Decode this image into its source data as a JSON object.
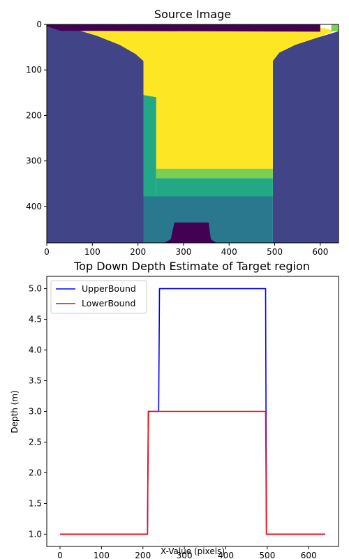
{
  "chart_data": [
    {
      "type": "image",
      "title": "Source Image",
      "xlim": [
        0,
        640
      ],
      "ylim": [
        480,
        0
      ],
      "xticks": [
        0,
        100,
        200,
        300,
        400,
        500,
        600
      ],
      "yticks": [
        0,
        100,
        200,
        300,
        400
      ],
      "colors": {
        "c0": "#440154",
        "c1": "#414487",
        "c2": "#2a788e",
        "c3": "#22a884",
        "c4": "#7ad151",
        "c5": "#fde725"
      },
      "regions": [
        {
          "name": "left-wall",
          "color": "c1",
          "points": [
            [
              0,
              0
            ],
            [
              60,
              10
            ],
            [
              110,
              25
            ],
            [
              160,
              45
            ],
            [
              195,
              65
            ],
            [
              212,
              80
            ],
            [
              212,
              480
            ],
            [
              0,
              480
            ]
          ]
        },
        {
          "name": "right-wall",
          "color": "c1",
          "points": [
            [
              640,
              0
            ],
            [
              640,
              480
            ],
            [
              496,
              480
            ],
            [
              496,
              80
            ],
            [
              510,
              62
            ],
            [
              545,
              45
            ],
            [
              590,
              30
            ],
            [
              640,
              15
            ]
          ]
        },
        {
          "name": "yellow-top-area",
          "color": "c5",
          "points": [
            [
              25,
              8
            ],
            [
              610,
              8
            ],
            [
              630,
              15
            ],
            [
              590,
              30
            ],
            [
              545,
              45
            ],
            [
              510,
              62
            ],
            [
              496,
              80
            ],
            [
              496,
              317
            ],
            [
              240,
              317
            ],
            [
              240,
              160
            ],
            [
              212,
              155
            ],
            [
              212,
              80
            ],
            [
              195,
              65
            ],
            [
              160,
              45
            ],
            [
              110,
              25
            ],
            [
              60,
              10
            ]
          ]
        },
        {
          "name": "green-left-strip",
          "color": "c3",
          "points": [
            [
              212,
              155
            ],
            [
              240,
              160
            ],
            [
              240,
              378
            ],
            [
              212,
              378
            ]
          ]
        },
        {
          "name": "light-green-band",
          "color": "c4",
          "points": [
            [
              240,
              317
            ],
            [
              496,
              317
            ],
            [
              496,
              338
            ],
            [
              240,
              338
            ]
          ]
        },
        {
          "name": "teal-band",
          "color": "c3",
          "points": [
            [
              240,
              338
            ],
            [
              496,
              338
            ],
            [
              496,
              378
            ],
            [
              240,
              378
            ]
          ]
        },
        {
          "name": "blue-band",
          "color": "c2",
          "points": [
            [
              212,
              378
            ],
            [
              496,
              378
            ],
            [
              496,
              480
            ],
            [
              212,
              480
            ]
          ]
        },
        {
          "name": "top-dark-strip",
          "color": "c0",
          "points": [
            [
              0,
              0
            ],
            [
              600,
              0
            ],
            [
              600,
              16
            ],
            [
              30,
              14
            ],
            [
              0,
              4
            ]
          ]
        },
        {
          "name": "top-right-green",
          "color": "c4",
          "points": [
            [
              624,
              0
            ],
            [
              640,
              0
            ],
            [
              640,
              15
            ],
            [
              624,
              15
            ]
          ]
        },
        {
          "name": "bottom-dark-object",
          "color": "c0",
          "points": [
            [
              280,
              435
            ],
            [
              355,
              435
            ],
            [
              360,
              472
            ],
            [
              372,
              480
            ],
            [
              258,
              480
            ],
            [
              272,
              472
            ]
          ]
        }
      ]
    },
    {
      "type": "line",
      "title": "Top Down Depth Estimate of Target region",
      "xlabel": "X-Value (pixels)",
      "ylabel": "Depth (m)",
      "xlim": [
        -32,
        672
      ],
      "ylim": [
        0.8,
        5.2
      ],
      "xticks": [
        0,
        100,
        200,
        300,
        400,
        500,
        600
      ],
      "yticks": [
        "1.0",
        "1.5",
        "2.0",
        "2.5",
        "3.0",
        "3.5",
        "4.0",
        "4.5",
        "5.0"
      ],
      "legend": "top-left",
      "series": [
        {
          "name": "UpperBound",
          "color": "#0000ff",
          "x": [
            0,
            211,
            212,
            213,
            238,
            240,
            496,
            498,
            640
          ],
          "y": [
            1.0,
            1.0,
            2.0,
            3.0,
            3.0,
            5.0,
            5.0,
            1.0,
            1.0
          ]
        },
        {
          "name": "LowerBound",
          "color": "#ff0000",
          "x": [
            0,
            211,
            212,
            213,
            496,
            498,
            640
          ],
          "y": [
            1.0,
            1.0,
            2.0,
            3.0,
            3.0,
            1.0,
            1.0
          ]
        }
      ]
    }
  ]
}
